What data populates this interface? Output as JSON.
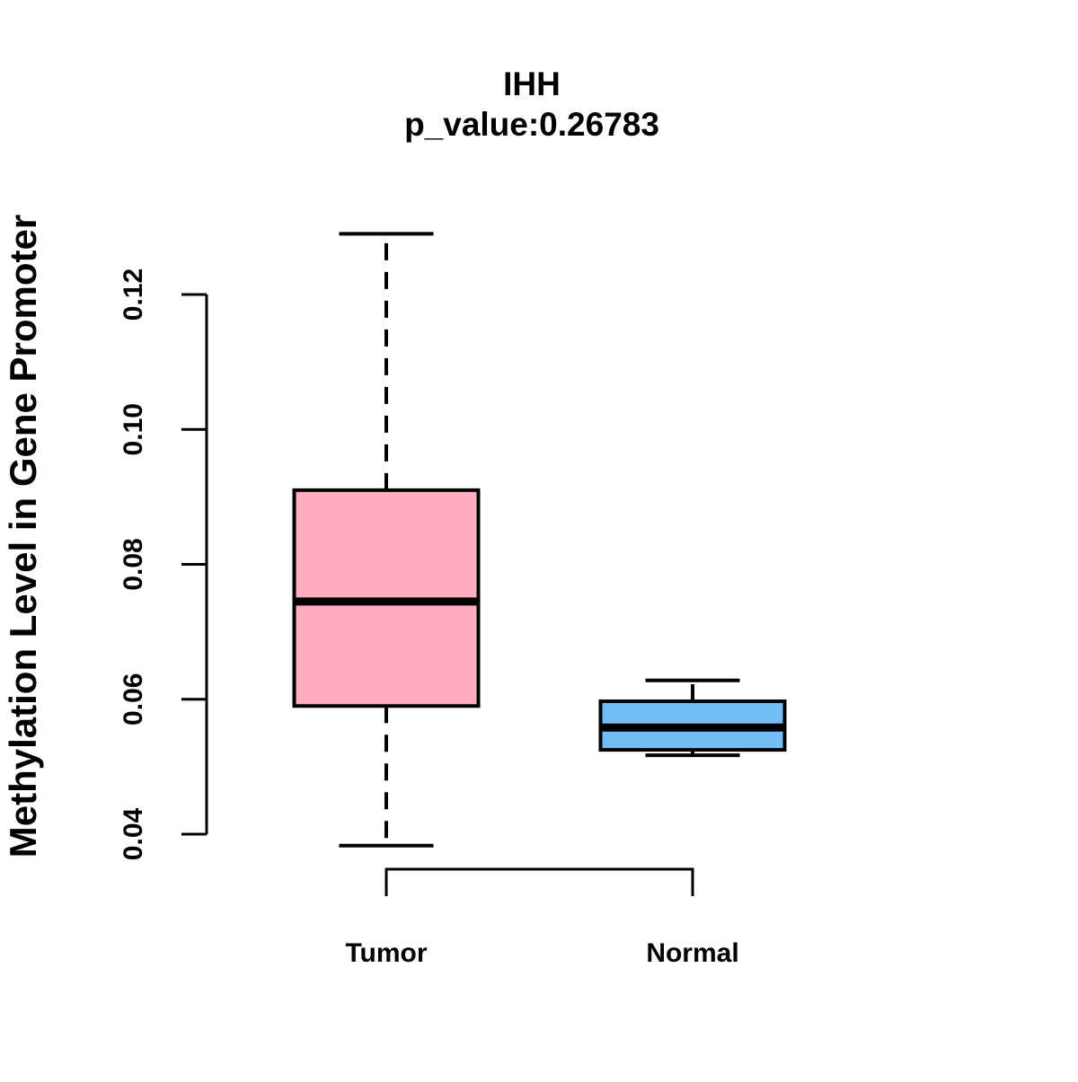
{
  "title": {
    "line1": "IHH",
    "line2": "p_value:0.26783"
  },
  "chart_data": {
    "type": "boxplot",
    "title": "IHH",
    "subtitle": "p_value:0.26783",
    "ylabel": "Methylation Level in Gene Promoter",
    "xlabel": "",
    "categories": [
      "Tumor",
      "Normal"
    ],
    "series": [
      {
        "name": "Tumor",
        "color": "#FFAEC1",
        "min": 0.0383,
        "q1": 0.059,
        "median": 0.0745,
        "q3": 0.091,
        "max": 0.129
      },
      {
        "name": "Normal",
        "color": "#74BEF6",
        "min": 0.0517,
        "q1": 0.0525,
        "median": 0.0558,
        "q3": 0.0597,
        "max": 0.0628
      }
    ],
    "ylim": [
      0.04,
      0.12
    ],
    "yticks": [
      0.04,
      0.06,
      0.08,
      0.1,
      0.12
    ],
    "ytick_labels": [
      "0.04",
      "0.06",
      "0.08",
      "0.10",
      "0.12"
    ],
    "grid": false,
    "legend": "none",
    "whisker_style": "dashed",
    "box_border_color": "#000000",
    "median_color": "#000000"
  },
  "colors": {
    "background": "#ffffff",
    "axis": "#000000",
    "text": "#000000",
    "tumor_fill": "#FFAEC1",
    "normal_fill": "#74BEF6"
  }
}
